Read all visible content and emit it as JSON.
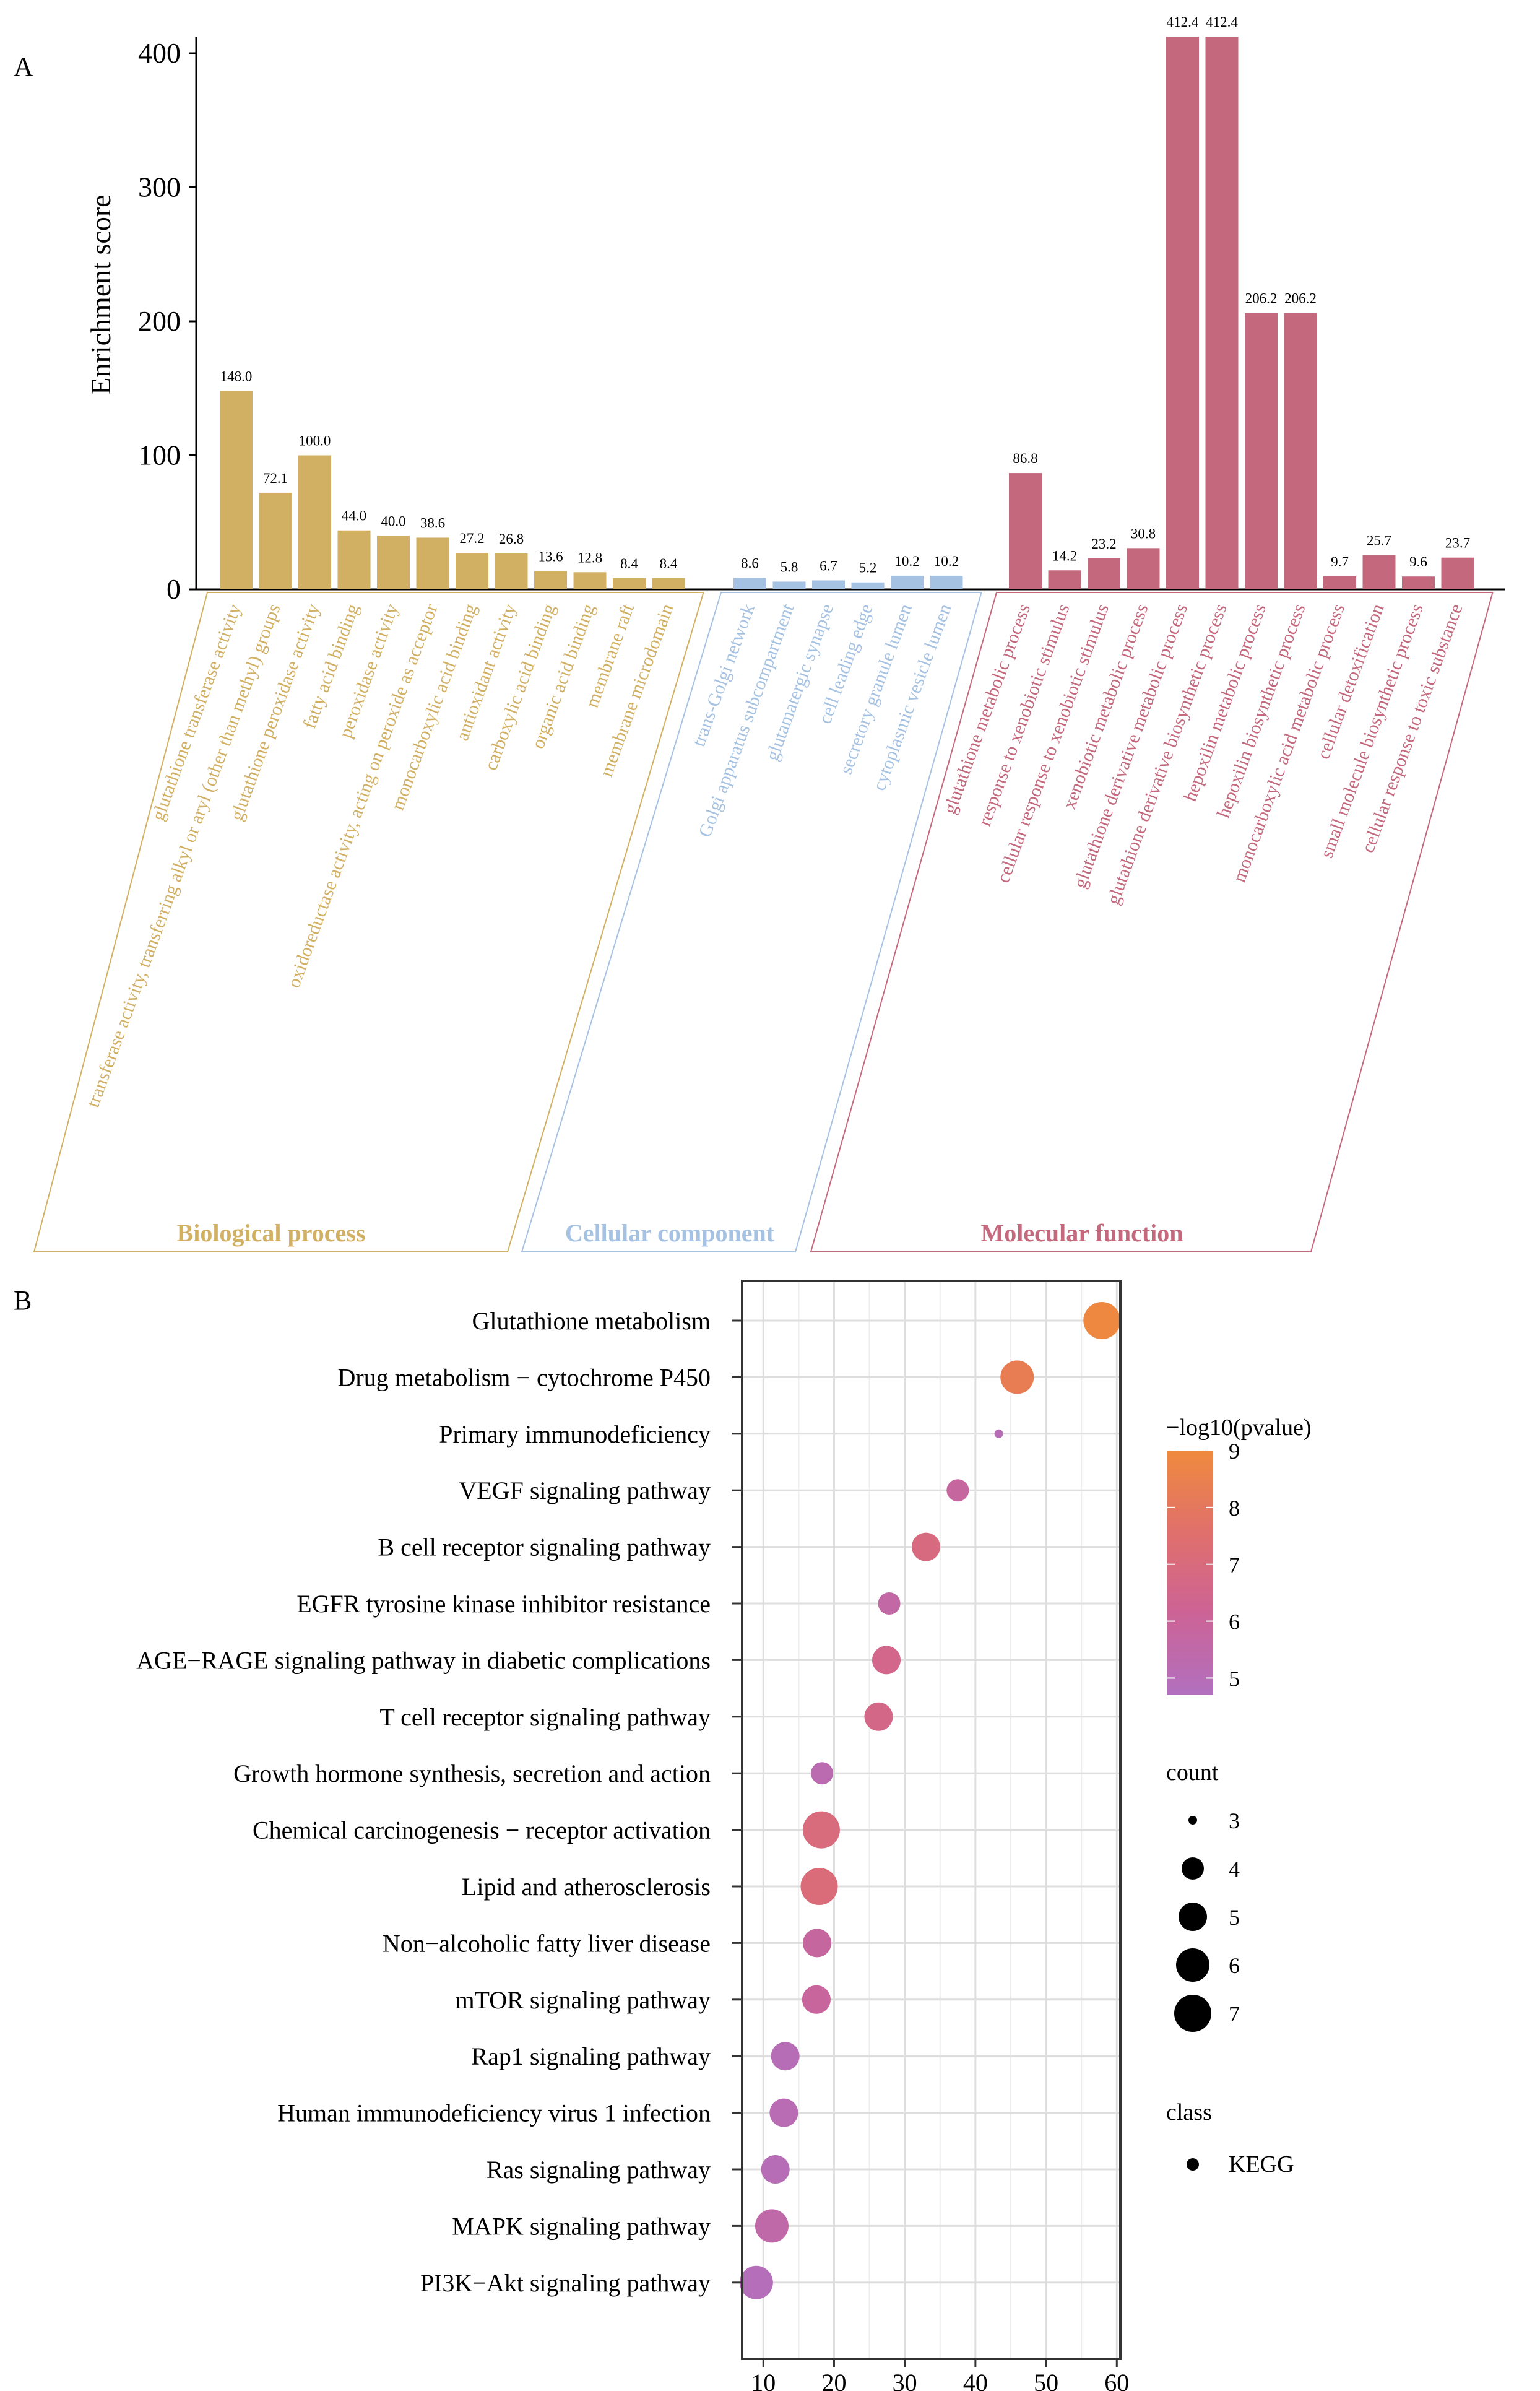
{
  "chart_data": [
    {
      "panel_label": "A",
      "type": "bar",
      "ylabel": "Enrichment score",
      "ylim": [
        0,
        400
      ],
      "yticks": [
        "0",
        "100",
        "200",
        "300",
        "400"
      ],
      "groups": [
        {
          "name": "Biological process",
          "color": "#D2B063",
          "categories": [
            "glutathione transferase activity",
            "transferase activity, transferring alkyl or aryl (other than methyl) groups",
            "glutathione peroxidase activity",
            "fatty acid binding",
            "peroxidase activity",
            "oxidoreductase activity, acting on peroxide as acceptor",
            "monocarboxylic acid binding",
            "antioxidant activity",
            "carboxylic acid binding",
            "organic acid binding",
            "membrane raft",
            "membrane microdomain"
          ],
          "values": [
            148.0,
            72.1,
            100.0,
            44.0,
            40.0,
            38.6,
            27.2,
            26.8,
            13.6,
            12.8,
            8.4,
            8.4
          ],
          "labels": [
            "148.0",
            "72.1",
            "100.0",
            "44.0",
            "40.0",
            "38.6",
            "27.2",
            "26.8",
            "13.6",
            "12.8",
            "8.4",
            "8.4"
          ]
        },
        {
          "name": "Cellular component",
          "color": "#A6C2E2",
          "categories": [
            "trans-Golgi network",
            "Golgi apparatus subcompartment",
            "glutamatergic synapse",
            "cell leading edge",
            "secretory granule lumen",
            "cytoplasmic vesicle lumen"
          ],
          "values": [
            8.6,
            5.8,
            6.7,
            5.2,
            10.2,
            10.2
          ],
          "labels": [
            "8.6",
            "5.8",
            "6.7",
            "5.2",
            "10.2",
            "10.2"
          ]
        },
        {
          "name": "Molecular function",
          "color": "#C4687E",
          "categories": [
            "glutathione metabolic process",
            "response to xenobiotic stimulus",
            "cellular response to xenobiotic stimulus",
            "xenobiotic metabolic process",
            "glutathione derivative metabolic process",
            "glutathione derivative biosynthetic process",
            "hepoxilin metabolic process",
            "hepoxilin biosynthetic process",
            "monocarboxylic acid metabolic process",
            "cellular detoxification",
            "small molecule biosynthetic process",
            "cellular response to toxic substance"
          ],
          "values": [
            86.8,
            14.2,
            23.2,
            30.8,
            412.4,
            412.4,
            206.2,
            206.2,
            9.7,
            25.7,
            9.6,
            23.7
          ],
          "labels": [
            "86.8",
            "14.2",
            "23.2",
            "30.8",
            "412.4",
            "412.4",
            "206.2",
            "206.2",
            "9.7",
            "25.7",
            "9.6",
            "23.7"
          ]
        }
      ]
    },
    {
      "panel_label": "B",
      "type": "scatter",
      "xlabel": "",
      "ylabel": "",
      "xlim": [
        7,
        60.5
      ],
      "xticks": [
        "10",
        "20",
        "30",
        "40",
        "50",
        "60"
      ],
      "grid": true,
      "categories": [
        "Glutathione metabolism",
        "Drug metabolism − cytochrome P450",
        "Primary immunodeficiency",
        "VEGF signaling pathway",
        "B cell receptor signaling pathway",
        "EGFR tyrosine kinase inhibitor resistance",
        "AGE−RAGE signaling pathway in diabetic complications",
        "T cell receptor signaling pathway",
        "Growth hormone synthesis, secretion and action",
        "Chemical carcinogenesis − receptor activation",
        "Lipid and atherosclerosis",
        "Non−alcoholic fatty liver disease",
        "mTOR signaling pathway",
        "Rap1 signaling pathway",
        "Human immunodeficiency virus 1 infection",
        "Ras signaling pathway",
        "MAPK signaling pathway",
        "PI3K−Akt signaling pathway"
      ],
      "x": [
        57.9,
        45.9,
        43.3,
        37.5,
        33.0,
        27.8,
        27.4,
        26.3,
        18.3,
        18.2,
        17.9,
        17.6,
        17.5,
        13.1,
        12.9,
        11.7,
        11.2,
        9.0
      ],
      "count": [
        7,
        6,
        3,
        4,
        5,
        4,
        5,
        5,
        4,
        7,
        7,
        5,
        5,
        5,
        5,
        5,
        6,
        6
      ],
      "neg_log10_pvalue": [
        8.9,
        8.3,
        5.0,
        5.8,
        6.9,
        5.6,
        6.5,
        6.6,
        5.2,
        7.0,
        7.1,
        5.8,
        5.9,
        5.0,
        5.1,
        5.0,
        5.5,
        4.9
      ],
      "legend_color": {
        "title": "−log10(pvalue)",
        "ticks": [
          "9",
          "8",
          "7",
          "6",
          "5"
        ],
        "range": [
          4.7,
          9.0
        ],
        "gradient": [
          "#EF8A3E",
          "#E0706B",
          "#CD6395",
          "#B170BF"
        ]
      },
      "legend_size": {
        "title": "count",
        "values": [
          "3",
          "4",
          "5",
          "6",
          "7"
        ]
      },
      "legend_class": {
        "title": "class",
        "values": [
          "KEGG"
        ]
      }
    }
  ]
}
